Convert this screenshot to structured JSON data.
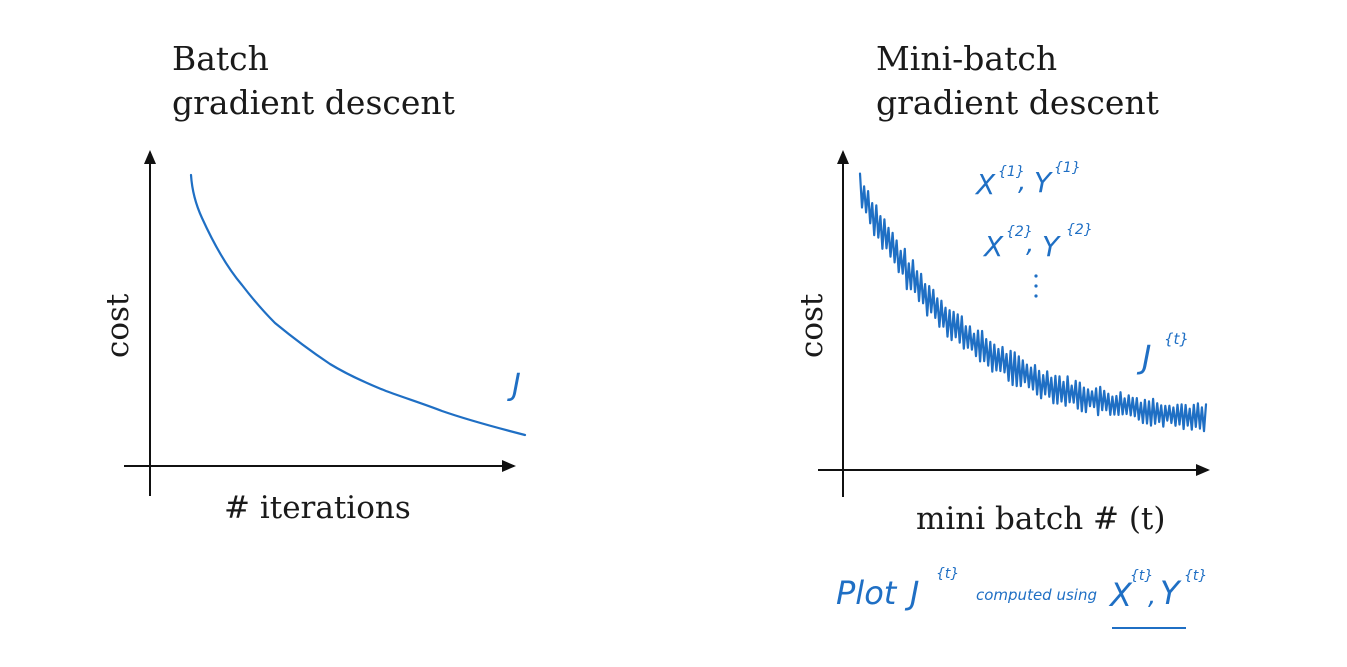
{
  "colors": {
    "ink": "#1a1a1a",
    "handwriting": "#1f6fc4"
  },
  "left_panel": {
    "title_line1": "Batch",
    "title_line2": "gradient descent",
    "ylabel": "cost",
    "xlabel": "# iterations",
    "curve_label": "J"
  },
  "right_panel": {
    "title_line1": "Mini-batch",
    "title_line2": "gradient descent",
    "ylabel": "cost",
    "xlabel": "mini batch # (t)",
    "note1_base": "X",
    "note1_sup": "{1}",
    "note1_base2": "Y",
    "note1_sup2": "{1}",
    "note2_base": "X",
    "note2_sup": "{2}",
    "note2_base2": "Y",
    "note2_sup2": "{2}",
    "curve_label": "J",
    "curve_label_sup": "{t}",
    "footnote_plot": "Plot",
    "footnote_J": "J",
    "footnote_J_sup": "{t}",
    "footnote_mid": "computed using",
    "footnote_X": "X",
    "footnote_X_sup": "{t}",
    "footnote_Y": "Y",
    "footnote_Y_sup": "{t}"
  }
}
